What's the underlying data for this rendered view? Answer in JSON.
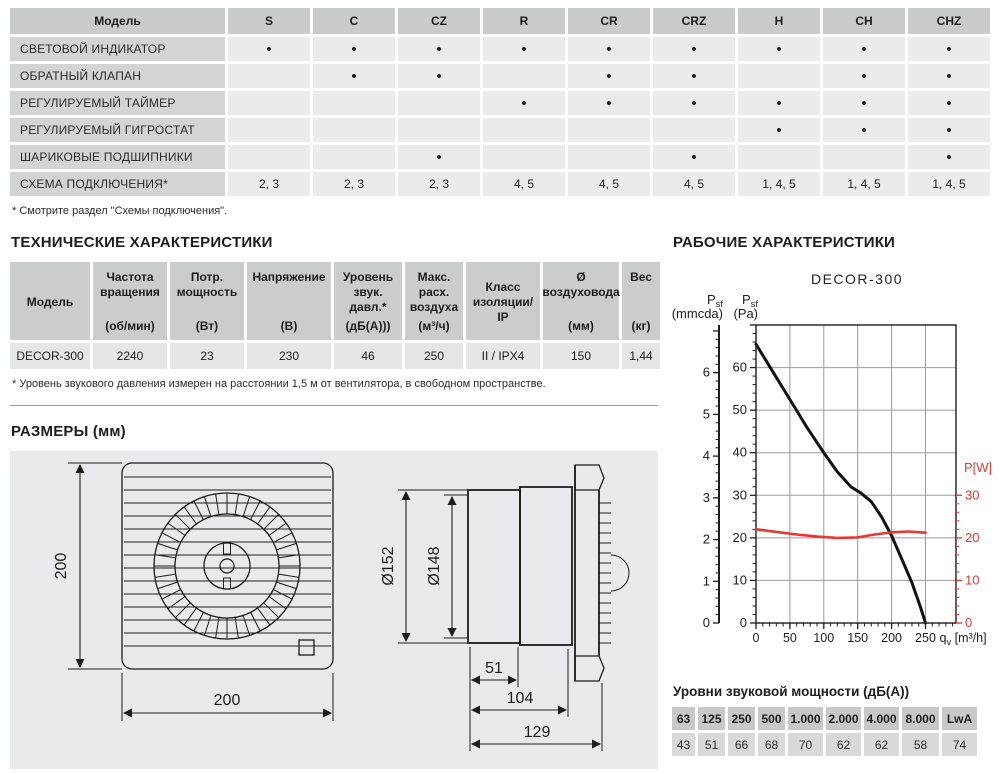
{
  "features_table": {
    "header": [
      "Модель",
      "S",
      "C",
      "CZ",
      "R",
      "CR",
      "CRZ",
      "H",
      "CH",
      "CHZ"
    ],
    "rows": [
      {
        "label": "СВЕТОВОЙ ИНДИКАТОР",
        "cells": [
          "•",
          "•",
          "•",
          "•",
          "•",
          "•",
          "•",
          "•",
          "•"
        ]
      },
      {
        "label": "ОБРАТНЫЙ КЛАПАН",
        "cells": [
          "",
          "•",
          "•",
          "",
          "•",
          "•",
          "",
          "•",
          "•"
        ]
      },
      {
        "label": "РЕГУЛИРУЕМЫЙ ТАЙМЕР",
        "cells": [
          "",
          "",
          "",
          "•",
          "•",
          "•",
          "•",
          "•",
          "•"
        ]
      },
      {
        "label": "РЕГУЛИРУЕМЫЙ ГИГРОСТАТ",
        "cells": [
          "",
          "",
          "",
          "",
          "",
          "",
          "•",
          "•",
          "•"
        ]
      },
      {
        "label": "ШАРИКОВЫЕ ПОДШИПНИКИ",
        "cells": [
          "",
          "",
          "•",
          "",
          "",
          "•",
          "",
          "",
          "•"
        ]
      },
      {
        "label": "СХЕМА ПОДКЛЮЧЕНИЯ*",
        "cells": [
          "2, 3",
          "2, 3",
          "2, 3",
          "4, 5",
          "4, 5",
          "4, 5",
          "1, 4, 5",
          "1, 4, 5",
          "1, 4, 5"
        ]
      }
    ],
    "footnote": "* Смотрите раздел \"Схемы подключения\"."
  },
  "tech_section": {
    "title": "ТЕХНИЧЕСКИЕ ХАРАКТЕРИСТИКИ",
    "table": {
      "headers": [
        {
          "top": "Модель",
          "unit": ""
        },
        {
          "top": "Частота вращения",
          "unit": "(об/мин)"
        },
        {
          "top": "Потр. мощность",
          "unit": "(Вт)"
        },
        {
          "top": "Напряжение",
          "unit": "(В)"
        },
        {
          "top": "Уровень звук. давл.*",
          "unit": "(дБ(А)))"
        },
        {
          "top": "Макс. расх. воздуха",
          "unit": "(м³/ч)"
        },
        {
          "top": "Класс изоляции/ IP",
          "unit": ""
        },
        {
          "top": "Ø воздуховода",
          "unit": "(мм)"
        },
        {
          "top": "Вес",
          "unit": "(кг)"
        }
      ],
      "row": [
        "DECOR-300",
        "2240",
        "23",
        "230",
        "46",
        "250",
        "II / IPX4",
        "150",
        "1,44"
      ]
    },
    "footnote": "* Уровень звукового давления измерен на расстоянии 1,5 м от вентилятора, в свободном пространстве."
  },
  "dimensions_section": {
    "title": "РАЗМЕРЫ (мм)",
    "front_view": {
      "height_label": "200",
      "width_label": "200"
    },
    "side_view": {
      "outer_dia": "Ø152",
      "inner_dia": "Ø148",
      "dim_51": "51",
      "dim_104": "104",
      "dim_129": "129"
    }
  },
  "performance_section": {
    "title": "РАБОЧИЕ ХАРАКТЕРИСТИКИ",
    "chart_title": "DECOR-300"
  },
  "chart_data": {
    "type": "line",
    "title": "DECOR-300",
    "x_axis": {
      "title_main": "q",
      "title_sub": "v",
      "title_unit": " [m³/h]",
      "ticks": [
        0,
        50,
        100,
        150,
        200,
        250
      ],
      "minor_step": 10,
      "max": 295
    },
    "pa_axis": {
      "title_main": "P",
      "title_sub": "sf",
      "title_unit": "(Pa)",
      "ticks": [
        0,
        10,
        20,
        30,
        40,
        50,
        60
      ],
      "minor_step": 2,
      "max": 70
    },
    "mmcda_axis": {
      "title_main": "P",
      "title_sub": "sf",
      "title_unit": "(mmcda)",
      "ticks": [
        0,
        1,
        2,
        3,
        4,
        5,
        6
      ],
      "minor_step": 0.2,
      "pa_per_unit": 9.8
    },
    "watt_axis": {
      "title": "P[W]",
      "ticks": [
        0,
        10,
        20,
        30
      ],
      "minor_step": 2,
      "max": 30,
      "color": "#e6382e"
    },
    "grid": true,
    "series": [
      {
        "name": "static-pressure",
        "axis": "pa",
        "color": "#121212",
        "width": 3,
        "points": [
          [
            0,
            65.5
          ],
          [
            25,
            59
          ],
          [
            50,
            52.5
          ],
          [
            75,
            46
          ],
          [
            100,
            40
          ],
          [
            120,
            35.5
          ],
          [
            140,
            32
          ],
          [
            155,
            30.5
          ],
          [
            170,
            28.5
          ],
          [
            185,
            25
          ],
          [
            200,
            20.5
          ],
          [
            215,
            15
          ],
          [
            230,
            9.5
          ],
          [
            242,
            4
          ],
          [
            250,
            0
          ]
        ]
      },
      {
        "name": "power-consumption",
        "axis": "watt",
        "color": "#e6382e",
        "width": 2.6,
        "points": [
          [
            0,
            22
          ],
          [
            30,
            21.4
          ],
          [
            60,
            20.8
          ],
          [
            90,
            20.3
          ],
          [
            120,
            20
          ],
          [
            150,
            20.1
          ],
          [
            175,
            20.8
          ],
          [
            200,
            21.3
          ],
          [
            225,
            21.5
          ],
          [
            250,
            21.2
          ]
        ]
      }
    ]
  },
  "sound_table": {
    "title": "Уровни звуковой мощности (дБ(А))",
    "headers": [
      "63",
      "125",
      "250",
      "500",
      "1.000",
      "2.000",
      "4.000",
      "8.000",
      "LwA"
    ],
    "values": [
      "43",
      "51",
      "66",
      "68",
      "70",
      "62",
      "62",
      "58",
      "74"
    ]
  },
  "colors": {
    "accent_red": "#e6382e",
    "cell_dark": "#cbcccc",
    "cell_label": "#d3d4d4",
    "cell_light": "#eaebeb",
    "panel_bg": "#e9eaeb"
  }
}
